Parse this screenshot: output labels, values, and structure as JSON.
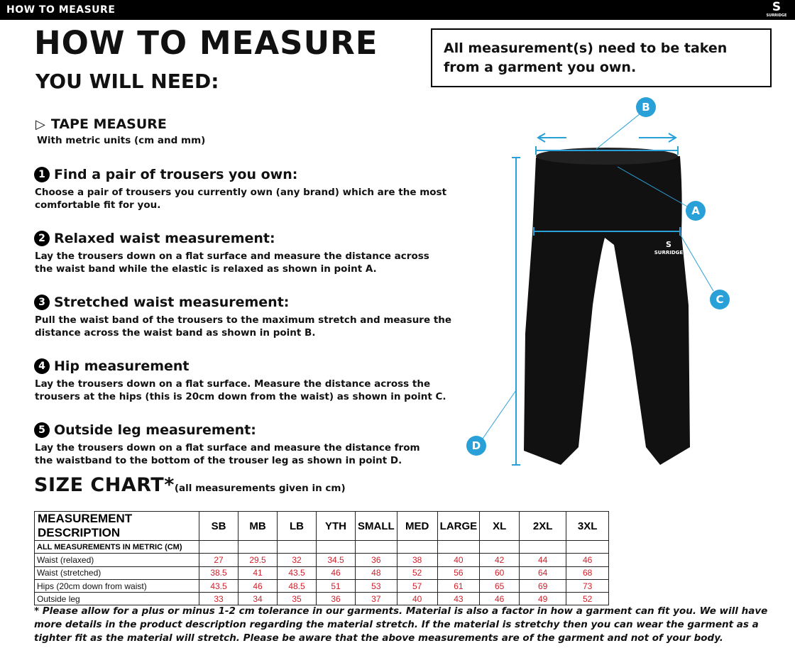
{
  "header": {
    "title": "HOW TO MEASURE",
    "logo_text": "SURRIDGE"
  },
  "page_title": "HOW TO MEASURE",
  "you_will_need": "YOU WILL NEED:",
  "notice": "All measurement(s) need to be taken from a garment you own.",
  "tape": {
    "title": "TAPE MEASURE",
    "subtitle": "With metric units (cm and mm)"
  },
  "steps": [
    {
      "num": "1",
      "title": "Find a pair of trousers you own:",
      "text": "Choose a pair of trousers you currently own (any brand) which are the most comfortable fit for you."
    },
    {
      "num": "2",
      "title": "Relaxed waist measurement:",
      "text": "Lay the trousers down on a flat surface and measure the distance across the waist band while the elastic is relaxed as shown in point A."
    },
    {
      "num": "3",
      "title": "Stretched waist measurement:",
      "text": "Pull the waist band of the trousers to the maximum stretch and measure the distance across the waist band as shown in point B."
    },
    {
      "num": "4",
      "title": "Hip measurement",
      "text": "Lay the trousers down on a flat surface. Measure the distance across the trousers at the hips (this is 20cm down from the waist)  as shown in point C."
    },
    {
      "num": "5",
      "title": "Outside leg measurement:",
      "text": "Lay the trousers down on a flat surface and measure the distance from the waistband to the bottom of the trouser  leg as shown in point D."
    }
  ],
  "diagram": {
    "points": [
      "A",
      "B",
      "C",
      "D"
    ],
    "accent": "#2aa0d8",
    "garment_logo": "SURRIDGE"
  },
  "size_chart": {
    "title": "SIZE CHART*",
    "note": "(all measurements given in cm)",
    "header": "MEASUREMENT DESCRIPTION",
    "sizes": [
      "SB",
      "MB",
      "LB",
      "YTH",
      "SMALL",
      "MED",
      "LARGE",
      "XL",
      "2XL",
      "3XL"
    ],
    "subheader": "ALL MEASUREMENTS IN METRIC (CM)",
    "rows": [
      {
        "label": "Waist (relaxed)",
        "values": [
          "27",
          "29.5",
          "32",
          "34.5",
          "36",
          "38",
          "40",
          "42",
          "44",
          "46"
        ]
      },
      {
        "label": "Waist (stretched)",
        "values": [
          "38.5",
          "41",
          "43.5",
          "46",
          "48",
          "52",
          "56",
          "60",
          "64",
          "68"
        ]
      },
      {
        "label": "Hips (20cm down from waist)",
        "values": [
          "43.5",
          "46",
          "48.5",
          "51",
          "53",
          "57",
          "61",
          "65",
          "69",
          "73"
        ]
      },
      {
        "label": "Outside leg",
        "values": [
          "33",
          "34",
          "35",
          "36",
          "37",
          "40",
          "43",
          "46",
          "49",
          "52"
        ]
      }
    ],
    "value_color": "#d0202a"
  },
  "footnote": "* Please allow for a plus or minus 1-2 cm tolerance in our garments. Material is also a factor in how a garment can fit you. We will have more details in the product description regarding the material stretch.  If the material is stretchy then you can wear the garment as a tighter fit as the material will stretch.  Please be aware that the above measurements are of the garment and not of your body."
}
